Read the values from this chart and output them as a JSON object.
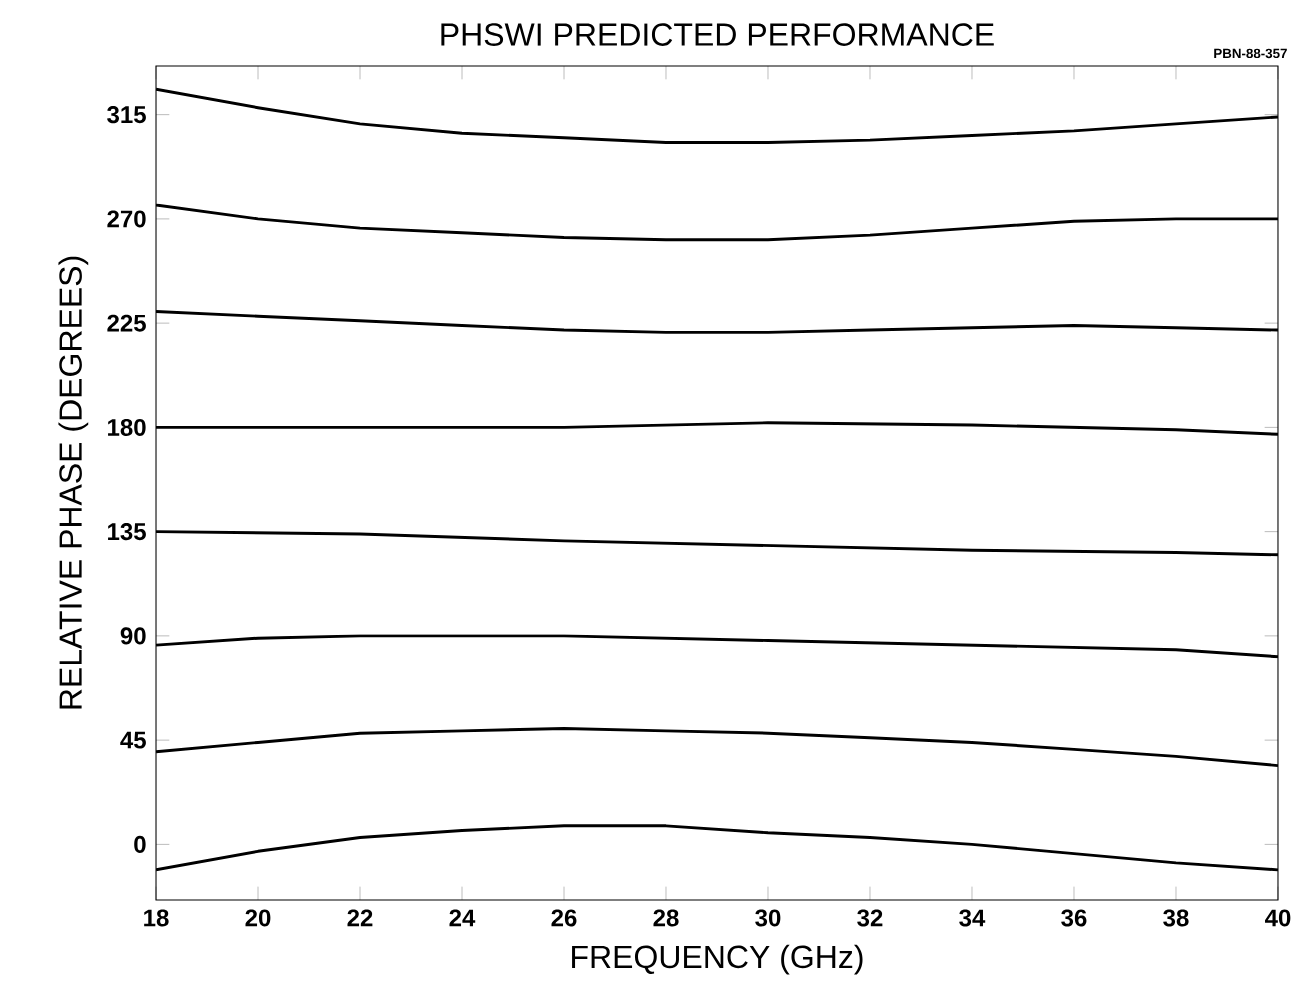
{
  "chart_data": {
    "type": "line",
    "title": "PHSWI PREDICTED PERFORMANCE",
    "xlabel": "FREQUENCY (GHz)",
    "ylabel": "RELATIVE PHASE (DEGREES)",
    "annotations": [
      "PBN-88-357"
    ],
    "xlim": [
      18,
      40
    ],
    "ylim": [
      -24,
      336
    ],
    "xticks": [
      18,
      20,
      22,
      24,
      26,
      28,
      30,
      32,
      34,
      36,
      38,
      40
    ],
    "yticks": [
      0,
      45,
      90,
      135,
      180,
      225,
      270,
      315
    ],
    "grid": false,
    "marker": "none",
    "line_style": "solid",
    "series": [
      {
        "color": "#000000",
        "x": [
          18,
          20,
          22,
          24,
          26,
          28,
          30,
          32,
          34,
          36,
          38,
          40
        ],
        "values": [
          326,
          318,
          311,
          307,
          305,
          303,
          303,
          304,
          306,
          308,
          311,
          314
        ]
      },
      {
        "color": "#000000",
        "x": [
          18,
          20,
          22,
          24,
          26,
          28,
          30,
          32,
          34,
          36,
          38,
          40
        ],
        "values": [
          276,
          270,
          266,
          264,
          262,
          261,
          261,
          263,
          266,
          269,
          270,
          270
        ]
      },
      {
        "color": "#000000",
        "x": [
          18,
          20,
          22,
          24,
          26,
          28,
          30,
          32,
          34,
          36,
          38,
          40
        ],
        "values": [
          230,
          228,
          226,
          224,
          222,
          221,
          221,
          222,
          223,
          224,
          223,
          222
        ]
      },
      {
        "color": "#000000",
        "x": [
          18,
          22,
          26,
          30,
          34,
          38,
          40
        ],
        "values": [
          180,
          180,
          180,
          182,
          181,
          179,
          177
        ]
      },
      {
        "color": "#000000",
        "x": [
          18,
          22,
          26,
          30,
          34,
          38,
          40
        ],
        "values": [
          135,
          134,
          131,
          129,
          127,
          126,
          125
        ]
      },
      {
        "color": "#000000",
        "x": [
          18,
          20,
          22,
          26,
          30,
          34,
          38,
          40
        ],
        "values": [
          86,
          89,
          90,
          90,
          88,
          86,
          84,
          81
        ]
      },
      {
        "color": "#000000",
        "x": [
          18,
          20,
          22,
          24,
          26,
          28,
          30,
          32,
          34,
          36,
          38,
          40
        ],
        "values": [
          40,
          44,
          48,
          49,
          50,
          49,
          48,
          46,
          44,
          41,
          38,
          34
        ]
      },
      {
        "color": "#000000",
        "x": [
          18,
          20,
          22,
          24,
          26,
          28,
          30,
          32,
          34,
          36,
          38,
          40
        ],
        "values": [
          -11,
          -3,
          3,
          6,
          8,
          8,
          5,
          3,
          0,
          -4,
          -8,
          -11
        ]
      }
    ]
  }
}
